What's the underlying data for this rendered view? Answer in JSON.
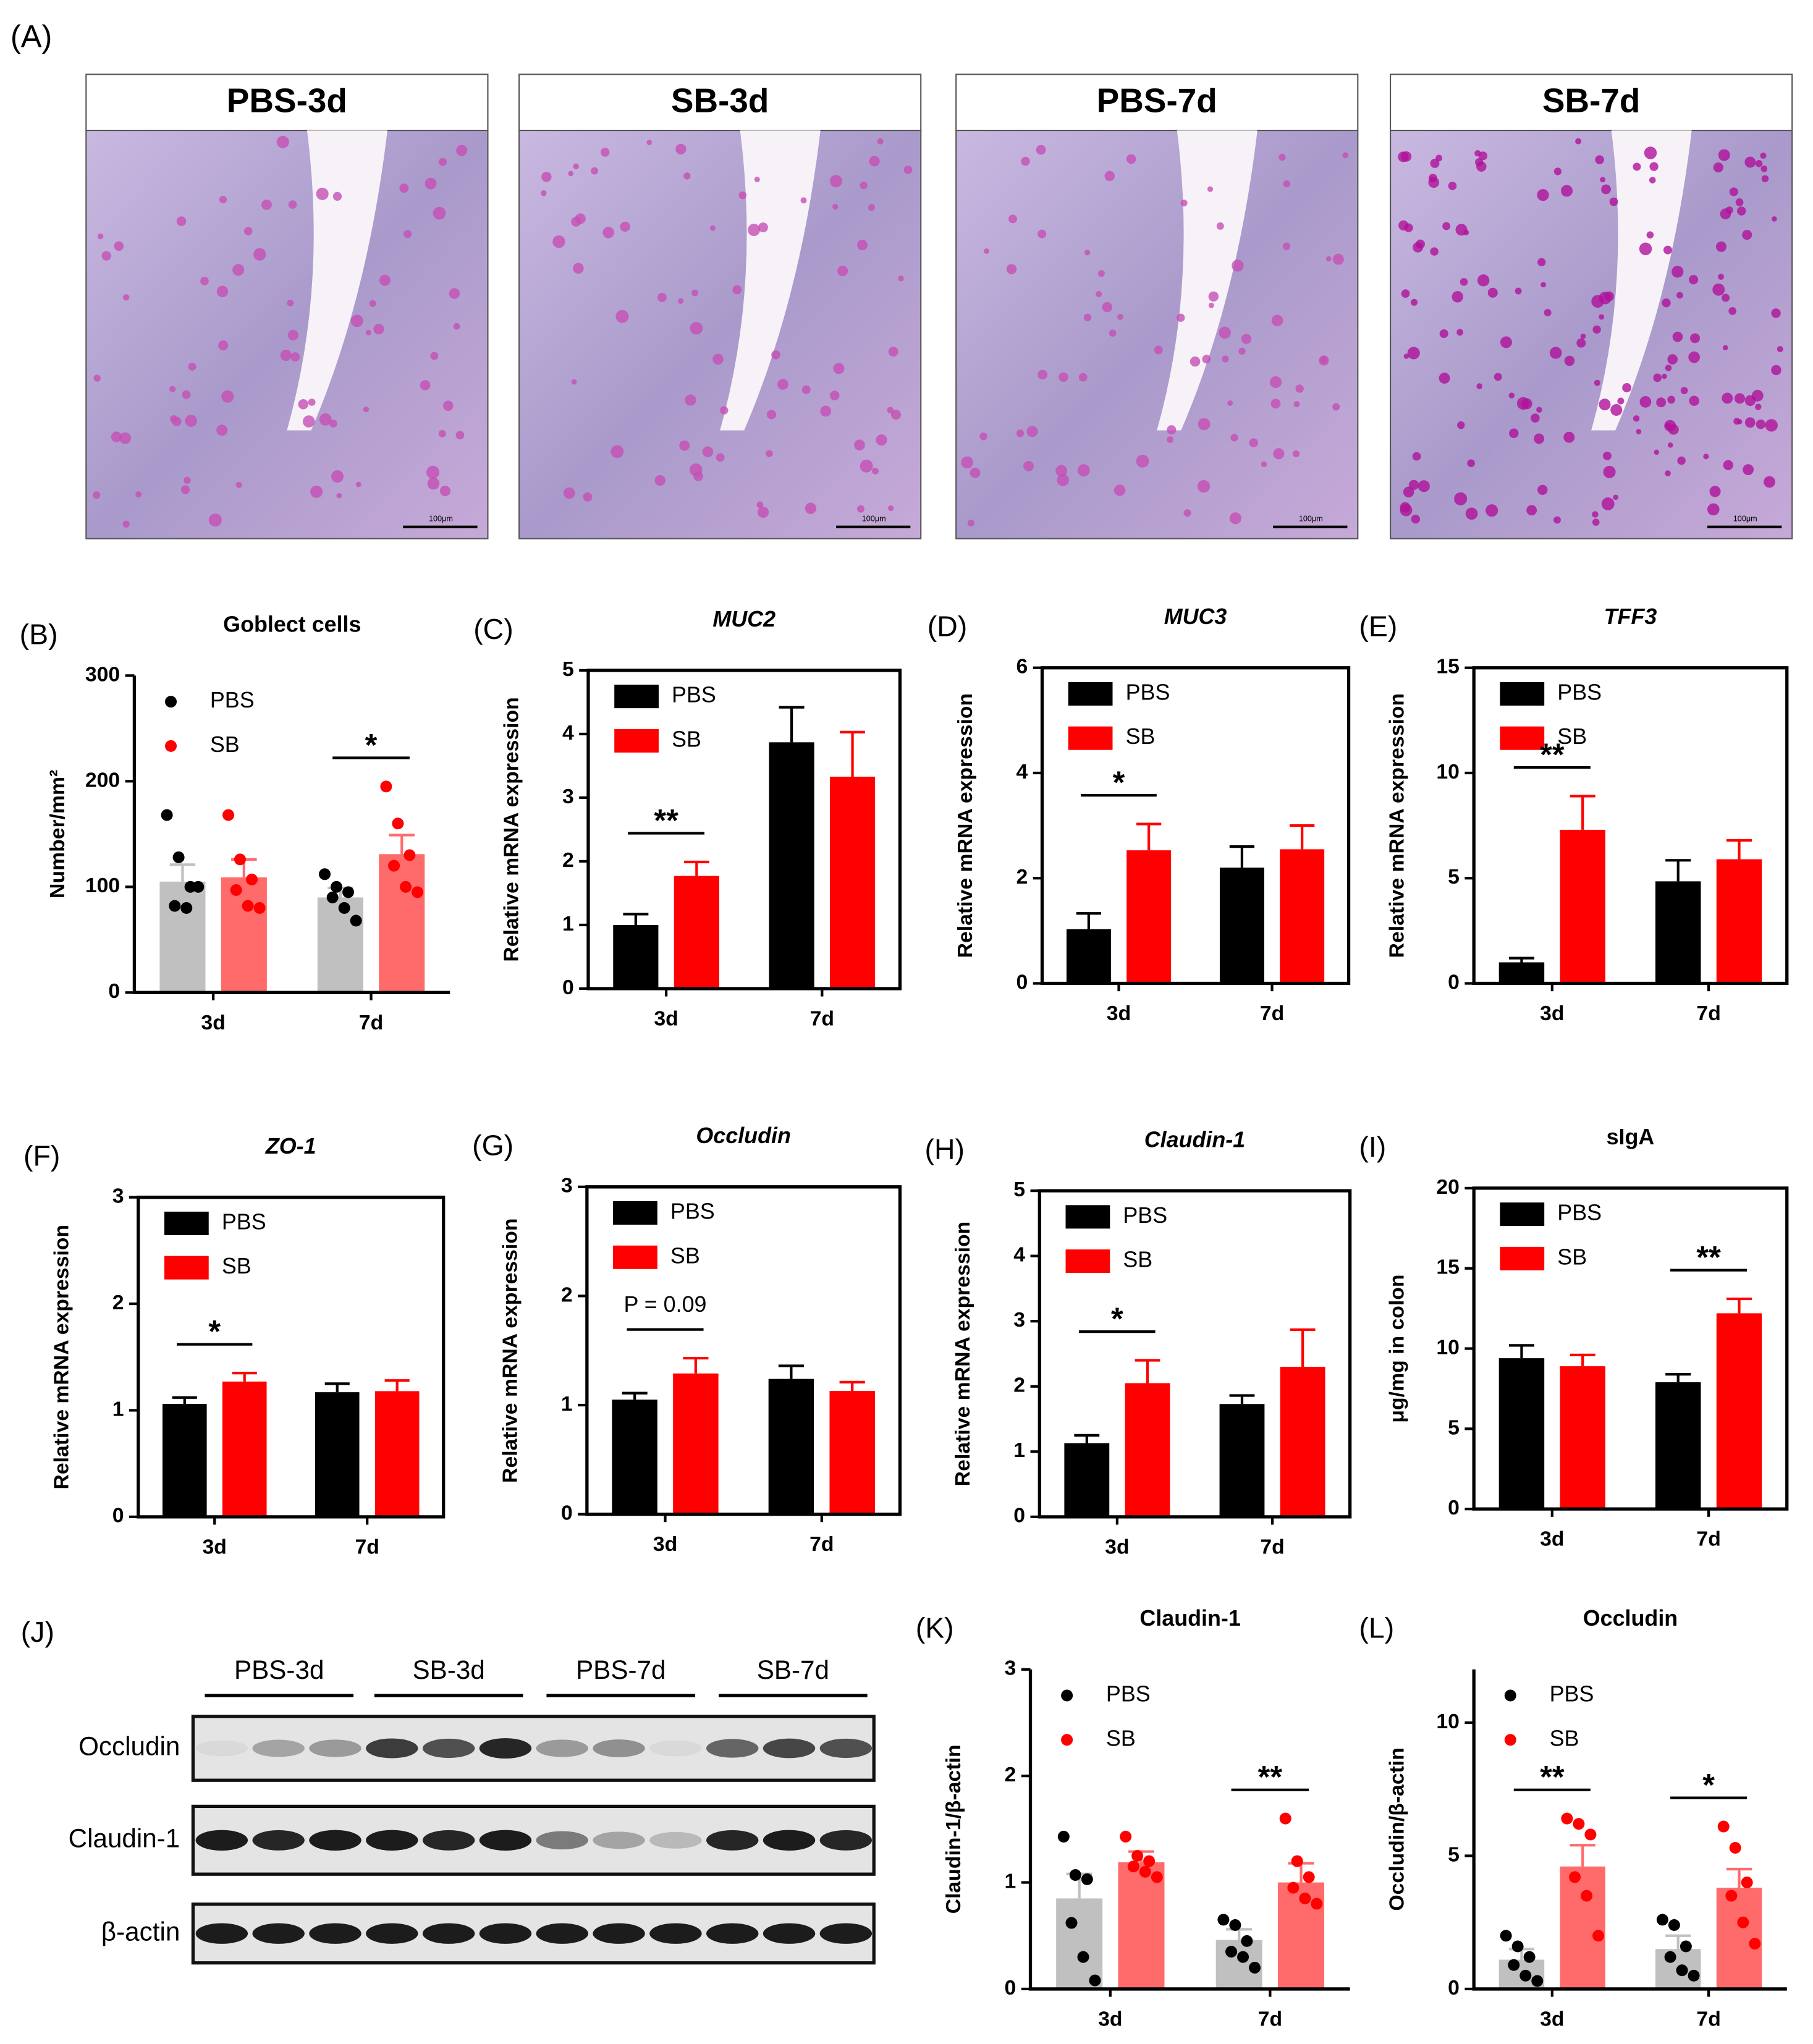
{
  "histology": {
    "label": "(A)",
    "panels": [
      {
        "title": "PBS-3d",
        "scale_bar": "100μm"
      },
      {
        "title": "SB-3d",
        "scale_bar": "100μm"
      },
      {
        "title": "PBS-7d",
        "scale_bar": "100μm"
      },
      {
        "title": "SB-7d",
        "scale_bar": "100μm"
      }
    ]
  },
  "chart_data": [
    {
      "type": "bar",
      "panel": "(B)",
      "title": "Goblect cells",
      "title_italic": false,
      "y_label": "Number/mm²",
      "categories": [
        "3d",
        "7d"
      ],
      "ylim": [
        0,
        300
      ],
      "yticks": [
        0,
        100,
        200,
        300
      ],
      "frame": false,
      "series": [
        {
          "name": "PBS",
          "color": "#c0c0c0",
          "point_color": "#000000",
          "values": [
            105,
            90
          ],
          "errors": [
            16,
            9
          ],
          "points": [
            [
              168,
              128,
              100,
              82,
              80,
              100
            ],
            [
              112,
              100,
              95,
              90,
              80,
              68
            ]
          ]
        },
        {
          "name": "SB",
          "color": "#ff6b6b",
          "point_color": "#ff0000",
          "values": [
            109,
            131
          ],
          "errors": [
            17,
            18
          ],
          "points": [
            [
              168,
              126,
              107,
              97,
              82,
              80
            ],
            [
              195,
              160,
              130,
              120,
              100,
              95
            ]
          ]
        }
      ],
      "annotations": [
        {
          "text": "*",
          "category": "7d"
        }
      ]
    },
    {
      "type": "bar",
      "panel": "(C)",
      "title": "MUC2",
      "title_italic": true,
      "y_label": "Relative mRNA expression",
      "categories": [
        "3d",
        "7d"
      ],
      "ylim": [
        0,
        5
      ],
      "yticks": [
        0,
        1,
        2,
        3,
        4,
        5
      ],
      "frame": true,
      "series": [
        {
          "name": "PBS",
          "color": "#000000",
          "values": [
            1.0,
            3.87
          ],
          "errors": [
            0.17,
            0.55
          ]
        },
        {
          "name": "SB",
          "color": "#ff0000",
          "values": [
            1.77,
            3.33
          ],
          "errors": [
            0.22,
            0.7
          ]
        }
      ],
      "annotations": [
        {
          "text": "**",
          "category": "3d"
        }
      ]
    },
    {
      "type": "bar",
      "panel": "(D)",
      "title": "MUC3",
      "title_italic": true,
      "y_label": "Relative mRNA expression",
      "categories": [
        "3d",
        "7d"
      ],
      "ylim": [
        0,
        6
      ],
      "yticks": [
        0,
        2,
        4,
        6
      ],
      "frame": true,
      "series": [
        {
          "name": "PBS",
          "color": "#000000",
          "values": [
            1.03,
            2.2
          ],
          "errors": [
            0.3,
            0.4
          ]
        },
        {
          "name": "SB",
          "color": "#ff0000",
          "values": [
            2.53,
            2.55
          ],
          "errors": [
            0.5,
            0.45
          ]
        }
      ],
      "annotations": [
        {
          "text": "*",
          "category": "3d"
        }
      ]
    },
    {
      "type": "bar",
      "panel": "(E)",
      "title": "TFF3",
      "title_italic": true,
      "y_label": "Relative mRNA expression",
      "categories": [
        "3d",
        "7d"
      ],
      "ylim": [
        0,
        15
      ],
      "yticks": [
        0,
        5,
        10,
        15
      ],
      "frame": true,
      "series": [
        {
          "name": "PBS",
          "color": "#000000",
          "values": [
            1.0,
            4.85
          ],
          "errors": [
            0.2,
            1.0
          ]
        },
        {
          "name": "SB",
          "color": "#ff0000",
          "values": [
            7.3,
            5.9
          ],
          "errors": [
            1.6,
            0.9
          ]
        }
      ],
      "annotations": [
        {
          "text": "**",
          "category": "3d"
        }
      ]
    },
    {
      "type": "bar",
      "panel": "(F)",
      "title": "ZO-1",
      "title_italic": true,
      "y_label": "Relative mRNA expression",
      "categories": [
        "3d",
        "7d"
      ],
      "ylim": [
        0,
        3
      ],
      "yticks": [
        0,
        1,
        2,
        3
      ],
      "frame": true,
      "series": [
        {
          "name": "PBS",
          "color": "#000000",
          "values": [
            1.06,
            1.17
          ],
          "errors": [
            0.06,
            0.08
          ]
        },
        {
          "name": "SB",
          "color": "#ff0000",
          "values": [
            1.27,
            1.18
          ],
          "errors": [
            0.08,
            0.1
          ]
        }
      ],
      "annotations": [
        {
          "text": "*",
          "category": "3d"
        }
      ]
    },
    {
      "type": "bar",
      "panel": "(G)",
      "title": "Occludin",
      "title_italic": true,
      "y_label": "Relative mRNA expression",
      "categories": [
        "3d",
        "7d"
      ],
      "ylim": [
        0,
        3
      ],
      "yticks": [
        0,
        1,
        2,
        3
      ],
      "frame": true,
      "series": [
        {
          "name": "PBS",
          "color": "#000000",
          "values": [
            1.05,
            1.24
          ],
          "errors": [
            0.06,
            0.12
          ]
        },
        {
          "name": "SB",
          "color": "#ff0000",
          "values": [
            1.29,
            1.13
          ],
          "errors": [
            0.14,
            0.08
          ]
        }
      ],
      "annotations": [
        {
          "text": "P = 0.09",
          "category": "3d"
        }
      ]
    },
    {
      "type": "bar",
      "panel": "(H)",
      "title": "Claudin-1",
      "title_italic": true,
      "y_label": "Relative mRNA expression",
      "categories": [
        "3d",
        "7d"
      ],
      "ylim": [
        0,
        5
      ],
      "yticks": [
        0,
        1,
        2,
        3,
        4,
        5
      ],
      "frame": true,
      "series": [
        {
          "name": "PBS",
          "color": "#000000",
          "values": [
            1.13,
            1.73
          ],
          "errors": [
            0.12,
            0.13
          ]
        },
        {
          "name": "SB",
          "color": "#ff0000",
          "values": [
            2.05,
            2.3
          ],
          "errors": [
            0.35,
            0.57
          ]
        }
      ],
      "annotations": [
        {
          "text": "*",
          "category": "3d"
        }
      ]
    },
    {
      "type": "bar",
      "panel": "(I)",
      "title": "sIgA",
      "title_italic": false,
      "y_label": "μg/mg in colon",
      "categories": [
        "3d",
        "7d"
      ],
      "ylim": [
        0,
        20
      ],
      "yticks": [
        0,
        5,
        10,
        15,
        20
      ],
      "frame": true,
      "series": [
        {
          "name": "PBS",
          "color": "#000000",
          "values": [
            9.4,
            7.9
          ],
          "errors": [
            0.8,
            0.5
          ]
        },
        {
          "name": "SB",
          "color": "#ff0000",
          "values": [
            8.9,
            12.2
          ],
          "errors": [
            0.7,
            0.9
          ]
        }
      ],
      "annotations": [
        {
          "text": "**",
          "category": "7d"
        }
      ]
    },
    {
      "type": "bar",
      "panel": "(K)",
      "title": "Claudin-1",
      "title_italic": false,
      "y_label": "Claudin-1/β-actin",
      "categories": [
        "3d",
        "7d"
      ],
      "ylim": [
        0,
        3
      ],
      "yticks": [
        0,
        1,
        2,
        3
      ],
      "frame": false,
      "series": [
        {
          "name": "PBS",
          "color": "#c0c0c0",
          "point_color": "#000000",
          "values": [
            0.85,
            0.46
          ],
          "errors": [
            0.23,
            0.1
          ],
          "points": [
            [
              1.43,
              1.07,
              1.03,
              0.62,
              0.3,
              0.08
            ],
            [
              0.65,
              0.6,
              0.45,
              0.35,
              0.3,
              0.2
            ]
          ]
        },
        {
          "name": "SB",
          "color": "#ff6b6b",
          "point_color": "#ff0000",
          "values": [
            1.19,
            1.0
          ],
          "errors": [
            0.1,
            0.18
          ],
          "points": [
            [
              1.43,
              1.25,
              1.2,
              1.15,
              1.1,
              1.05
            ],
            [
              1.6,
              1.2,
              1.05,
              0.95,
              0.85,
              0.8
            ]
          ]
        }
      ],
      "annotations": [
        {
          "text": "**",
          "category": "7d"
        }
      ]
    },
    {
      "type": "bar",
      "panel": "(L)",
      "title": "Occludin",
      "title_italic": false,
      "y_label": "Occludin/β-actin",
      "categories": [
        "3d",
        "7d"
      ],
      "ylim": [
        0,
        12
      ],
      "yticks": [
        0,
        5,
        10
      ],
      "frame": false,
      "series": [
        {
          "name": "PBS",
          "color": "#c0c0c0",
          "point_color": "#000000",
          "values": [
            1.1,
            1.5
          ],
          "errors": [
            0.4,
            0.5
          ],
          "points": [
            [
              2.0,
              1.6,
              1.2,
              0.9,
              0.5,
              0.3
            ],
            [
              2.6,
              2.4,
              1.6,
              1.2,
              0.7,
              0.5
            ]
          ]
        },
        {
          "name": "SB",
          "color": "#ff6b6b",
          "point_color": "#ff0000",
          "values": [
            4.6,
            3.8
          ],
          "errors": [
            0.8,
            0.7
          ],
          "points": [
            [
              6.4,
              6.2,
              5.8,
              4.2,
              3.5,
              2.0
            ],
            [
              6.1,
              5.3,
              4.0,
              3.5,
              2.5,
              1.7
            ]
          ]
        }
      ],
      "annotations": [
        {
          "text": "**",
          "category": "3d"
        },
        {
          "text": "*",
          "category": "7d"
        }
      ]
    }
  ],
  "western_blot": {
    "label": "(J)",
    "groups": [
      "PBS-3d",
      "SB-3d",
      "PBS-7d",
      "SB-7d"
    ],
    "rows": [
      "Occludin",
      "Claudin-1",
      "β-actin"
    ]
  }
}
